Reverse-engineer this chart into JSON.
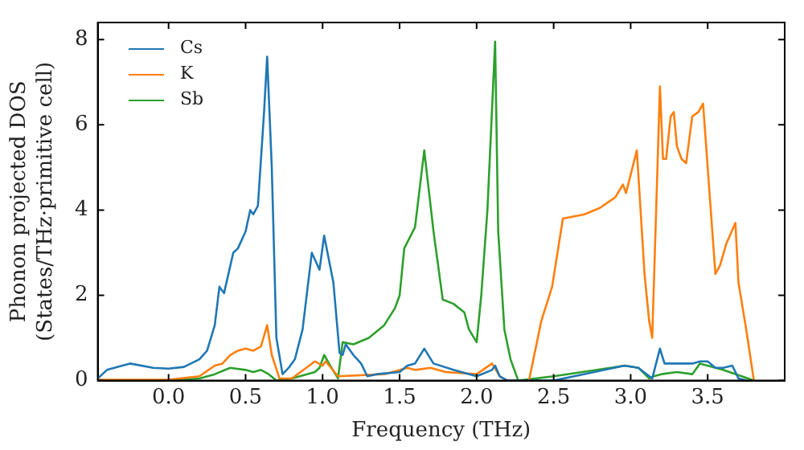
{
  "chart_data": {
    "type": "line",
    "xlabel": "Frequency (THz)",
    "ylabel": "Phonon projected DOS\n(States/THz·primitive cell)",
    "xlim": [
      -0.46,
      4.0
    ],
    "ylim": [
      0,
      8.4
    ],
    "xticks": [
      {
        "value": 0,
        "label": "0.0"
      },
      0.5,
      {
        "value": 1,
        "label": "1.0"
      },
      1.5,
      {
        "value": 2,
        "label": "2.0"
      },
      2.5,
      {
        "value": 3,
        "label": "3.0"
      },
      3.5
    ],
    "yticks": [
      0,
      2,
      4,
      6,
      8
    ],
    "grid": false,
    "legend": "top left",
    "marker": "none",
    "line_style": "solid",
    "series": [
      {
        "name": "Cs",
        "color": "#1f77b4",
        "x": [
          -0.46,
          -0.4,
          -0.3,
          -0.25,
          -0.1,
          0.0,
          0.1,
          0.2,
          0.25,
          0.3,
          0.33,
          0.36,
          0.42,
          0.45,
          0.5,
          0.53,
          0.55,
          0.58,
          0.62,
          0.64,
          0.67,
          0.7,
          0.74,
          0.78,
          0.82,
          0.87,
          0.93,
          0.98,
          1.01,
          1.07,
          1.11,
          1.13,
          1.15,
          1.2,
          1.25,
          1.29,
          1.35,
          1.5,
          1.55,
          1.6,
          1.66,
          1.72,
          1.85,
          2.0,
          2.1,
          2.12,
          2.15,
          2.2,
          2.5,
          2.96,
          3.05,
          3.14,
          3.19,
          3.22,
          3.4,
          3.45,
          3.5,
          3.55,
          3.6,
          3.66,
          3.7,
          3.75
        ],
        "values": [
          0.05,
          0.25,
          0.35,
          0.4,
          0.3,
          0.28,
          0.32,
          0.5,
          0.7,
          1.3,
          2.2,
          2.05,
          3.0,
          3.1,
          3.5,
          4.0,
          3.9,
          4.1,
          6.3,
          7.6,
          5.0,
          1.0,
          0.15,
          0.3,
          0.5,
          1.2,
          3.0,
          2.6,
          3.4,
          2.3,
          0.65,
          0.6,
          0.85,
          0.6,
          0.4,
          0.1,
          0.15,
          0.2,
          0.35,
          0.4,
          0.75,
          0.4,
          0.25,
          0.1,
          0.25,
          0.35,
          0.1,
          0,
          0,
          0.35,
          0.3,
          0.05,
          0.75,
          0.4,
          0.4,
          0.45,
          0.45,
          0.3,
          0.3,
          0.35,
          0.05,
          0
        ]
      },
      {
        "name": "K",
        "color": "#ff7f0e",
        "x": [
          -0.46,
          0.0,
          0.2,
          0.3,
          0.35,
          0.4,
          0.45,
          0.5,
          0.55,
          0.6,
          0.64,
          0.67,
          0.72,
          0.8,
          0.95,
          1.0,
          1.02,
          1.1,
          1.4,
          1.55,
          1.6,
          1.7,
          1.8,
          2.0,
          2.1,
          2.15,
          2.2,
          2.34,
          2.42,
          2.49,
          2.56,
          2.7,
          2.8,
          2.9,
          2.95,
          2.97,
          3.04,
          3.09,
          3.12,
          3.14,
          3.19,
          3.21,
          3.23,
          3.26,
          3.28,
          3.3,
          3.33,
          3.36,
          3.4,
          3.44,
          3.47,
          3.52,
          3.55,
          3.58,
          3.62,
          3.68,
          3.7,
          3.75,
          3.8
        ],
        "values": [
          0.02,
          0.02,
          0.1,
          0.35,
          0.4,
          0.6,
          0.7,
          0.75,
          0.7,
          0.8,
          1.3,
          0.6,
          0.05,
          0.05,
          0.45,
          0.35,
          0.45,
          0.1,
          0.15,
          0.3,
          0.25,
          0.3,
          0.2,
          0.15,
          0.4,
          0.1,
          0,
          0,
          1.4,
          2.2,
          3.8,
          3.9,
          4.05,
          4.3,
          4.6,
          4.4,
          5.4,
          2.5,
          1.4,
          1.0,
          6.9,
          5.2,
          5.2,
          6.2,
          6.3,
          5.5,
          5.2,
          5.1,
          6.2,
          6.3,
          6.5,
          4.0,
          2.5,
          2.7,
          3.2,
          3.7,
          2.3,
          1.2,
          0
        ]
      },
      {
        "name": "Sb",
        "color": "#2ca02c",
        "x": [
          -0.46,
          0.0,
          0.2,
          0.3,
          0.4,
          0.5,
          0.55,
          0.6,
          0.65,
          0.7,
          0.8,
          0.95,
          0.98,
          1.01,
          1.05,
          1.1,
          1.13,
          1.2,
          1.3,
          1.4,
          1.47,
          1.5,
          1.53,
          1.6,
          1.66,
          1.72,
          1.78,
          1.85,
          1.92,
          1.95,
          2.0,
          2.03,
          2.07,
          2.12,
          2.14,
          2.18,
          2.22,
          2.27,
          2.5,
          2.96,
          3.05,
          3.12,
          3.15,
          3.2,
          3.3,
          3.4,
          3.45,
          3.6,
          3.8
        ],
        "values": [
          0,
          0,
          0.05,
          0.15,
          0.3,
          0.25,
          0.2,
          0.25,
          0.15,
          0,
          0.05,
          0.2,
          0.3,
          0.6,
          0.35,
          0.05,
          0.9,
          0.85,
          1.0,
          1.3,
          1.7,
          2.0,
          3.1,
          3.6,
          5.4,
          3.5,
          1.9,
          1.8,
          1.6,
          1.2,
          0.9,
          2.0,
          4.0,
          7.95,
          3.5,
          1.2,
          0.5,
          0,
          0.1,
          0.35,
          0.3,
          0.05,
          0.1,
          0.15,
          0.2,
          0.15,
          0.4,
          0.25,
          0
        ]
      }
    ]
  }
}
